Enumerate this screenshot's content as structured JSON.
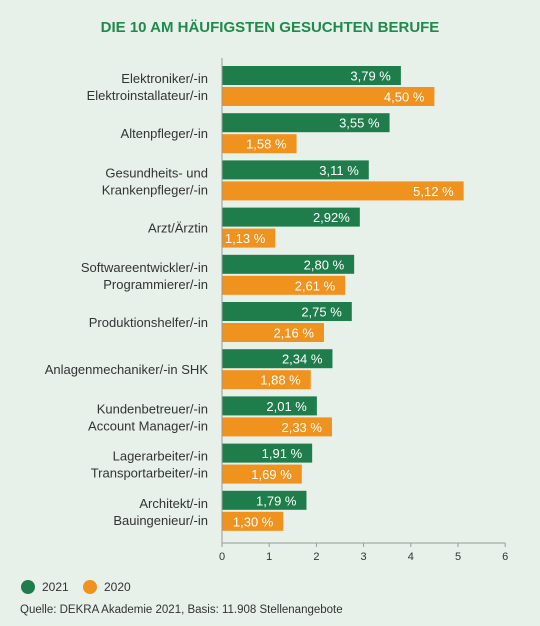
{
  "chart_data": {
    "type": "bar",
    "orientation": "horizontal",
    "title": "DIE 10 AM HÄUFIGSTEN GESUCHTEN BERUFE",
    "categories": [
      [
        "Elektroniker/-in",
        "Elektroinstallateur/-in"
      ],
      [
        "Altenpfleger/-in"
      ],
      [
        "Gesundheits- und",
        "Krankenpfleger/-in"
      ],
      [
        "Arzt/Ärztin"
      ],
      [
        "Softwareentwickler/-in",
        "Programmierer/-in"
      ],
      [
        "Produktionshelfer/-in"
      ],
      [
        "Anlagenmechaniker/-in SHK"
      ],
      [
        "Kundenbetreuer/-in",
        "Account Manager/-in"
      ],
      [
        "Lagerarbeiter/-in",
        "Transportarbeiter/-in"
      ],
      [
        "Architekt/-in",
        "Bauingenieur/-in"
      ]
    ],
    "series": [
      {
        "name": "2021",
        "color": "#1e7d4b",
        "values": [
          3.79,
          3.55,
          3.11,
          2.92,
          2.8,
          2.75,
          2.34,
          2.01,
          1.91,
          1.79
        ],
        "labels": [
          "3,79 %",
          "3,55 %",
          "3,11 %",
          "2,92%",
          "2,80 %",
          "2,75 %",
          "2,34 %",
          "2,01 %",
          "1,91 %",
          "1,79 %"
        ]
      },
      {
        "name": "2020",
        "color": "#f0921e",
        "values": [
          4.5,
          1.58,
          5.12,
          1.13,
          2.61,
          2.16,
          1.88,
          2.33,
          1.69,
          1.3
        ],
        "labels": [
          "4,50 %",
          "1,58 %",
          "5,12 %",
          "1,13 %",
          "2,61 %",
          "2,16 %",
          "1,88 %",
          "2,33 %",
          "1,69 %",
          "1,30 %"
        ]
      }
    ],
    "xlim": [
      0,
      6
    ],
    "xticks": [
      "0",
      "1",
      "2",
      "3",
      "4",
      "5",
      "6"
    ],
    "grid": false,
    "legend_position": "bottom-left",
    "title_color": "#1e8a4c",
    "source": "Quelle: DEKRA Akademie 2021, Basis: 11.908 Stellenangebote"
  }
}
